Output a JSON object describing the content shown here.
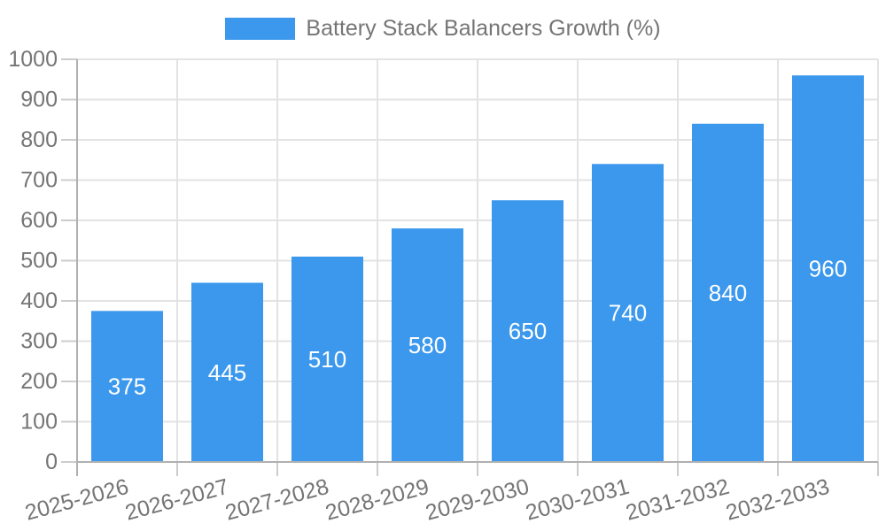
{
  "legend": {
    "label": "Battery Stack Balancers Growth (%)"
  },
  "colors": {
    "bar": "#3b98ec",
    "axis_line": "#b0b0b0",
    "grid_line": "#e3e3e3",
    "tick": "#cccccc",
    "text": "#757575",
    "value_label": "#ffffff",
    "background": "#ffffff"
  },
  "chart_data": {
    "type": "bar",
    "title": "Battery Stack Balancers Growth (%)",
    "categories": [
      "2025-2026",
      "2026-2027",
      "2027-2028",
      "2028-2029",
      "2029-2030",
      "2030-2031",
      "2031-2032",
      "2032-2033"
    ],
    "values": [
      375,
      445,
      510,
      580,
      650,
      740,
      840,
      960
    ],
    "xlabel": "",
    "ylabel": "",
    "ylim": [
      0,
      1000
    ],
    "yticks": [
      0,
      100,
      200,
      300,
      400,
      500,
      600,
      700,
      800,
      900,
      1000
    ],
    "grid": true,
    "legend_position": "top",
    "bar_value_labels": true,
    "x_label_rotation_deg": -15
  }
}
